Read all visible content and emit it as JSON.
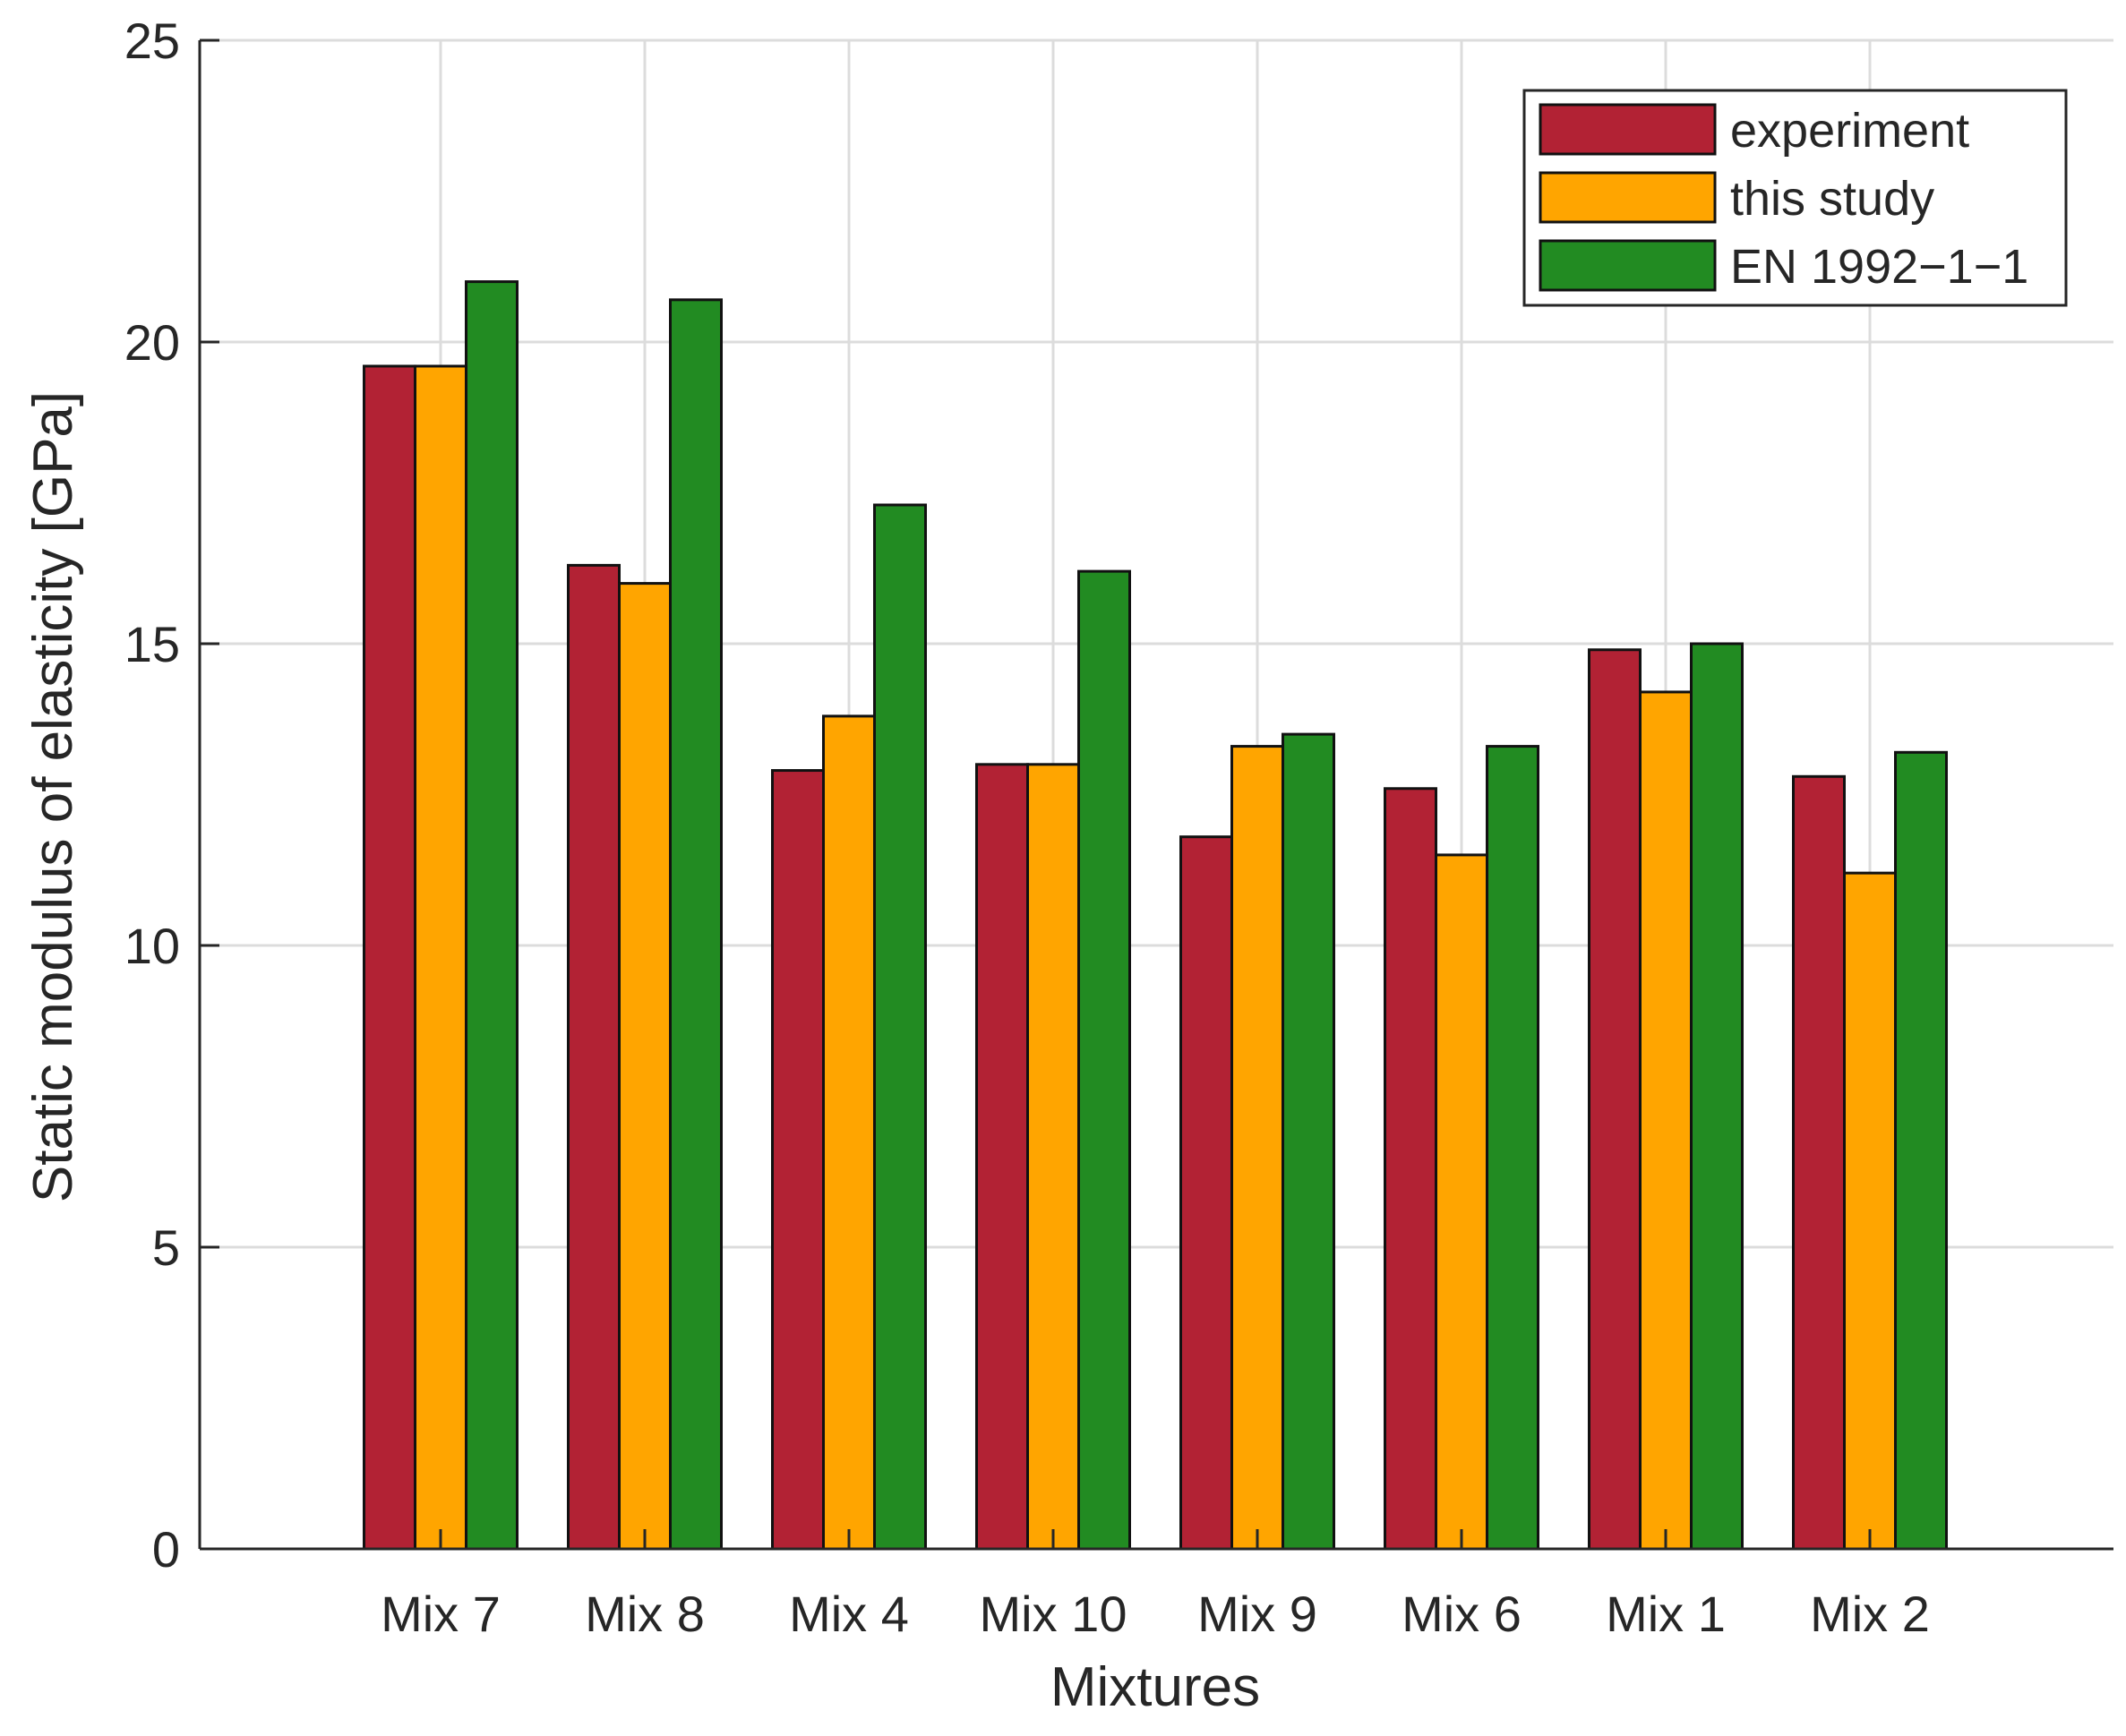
{
  "chart_data": {
    "type": "bar",
    "title": "",
    "xlabel": "Mixtures",
    "ylabel": "Static modulus of elasticity [GPa]",
    "ylim": [
      0,
      25
    ],
    "yticks": [
      0,
      5,
      10,
      15,
      20,
      25
    ],
    "ytick_labels": [
      "0",
      "5",
      "10",
      "15",
      "20",
      "25"
    ],
    "grid": true,
    "legend_position": "top-right",
    "categories": [
      "Mix 7",
      "Mix 8",
      "Mix 4",
      "Mix 10",
      "Mix 9",
      "Mix 6",
      "Mix 1",
      "Mix 2"
    ],
    "series": [
      {
        "name": "experiment",
        "color": "#b22234",
        "values": [
          19.6,
          16.3,
          12.9,
          13.0,
          11.8,
          12.6,
          14.9,
          12.8
        ]
      },
      {
        "name": "this study",
        "color": "#ffa500",
        "values": [
          19.6,
          16.0,
          13.8,
          13.0,
          13.3,
          11.5,
          14.2,
          11.2
        ]
      },
      {
        "name": "EN 1992−1−1",
        "color": "#228b22",
        "values": [
          21.0,
          20.7,
          17.3,
          16.2,
          13.5,
          13.3,
          15.0,
          13.2
        ]
      }
    ]
  }
}
